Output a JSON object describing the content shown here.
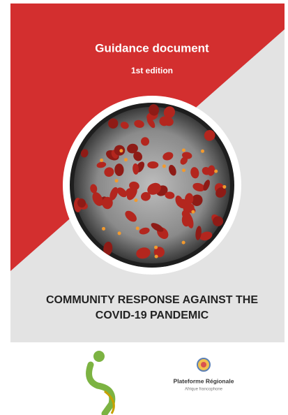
{
  "header": {
    "title": "Guidance document",
    "edition": "1st edition"
  },
  "title": {
    "lines": [
      "COMMUNITY RESPONSE AGAINST THE",
      "COVID-19 PANDEMIC"
    ]
  },
  "logos": {
    "right": {
      "name": "Plateforme Régionale",
      "subtitle": "Afrique francophone"
    }
  }
}
